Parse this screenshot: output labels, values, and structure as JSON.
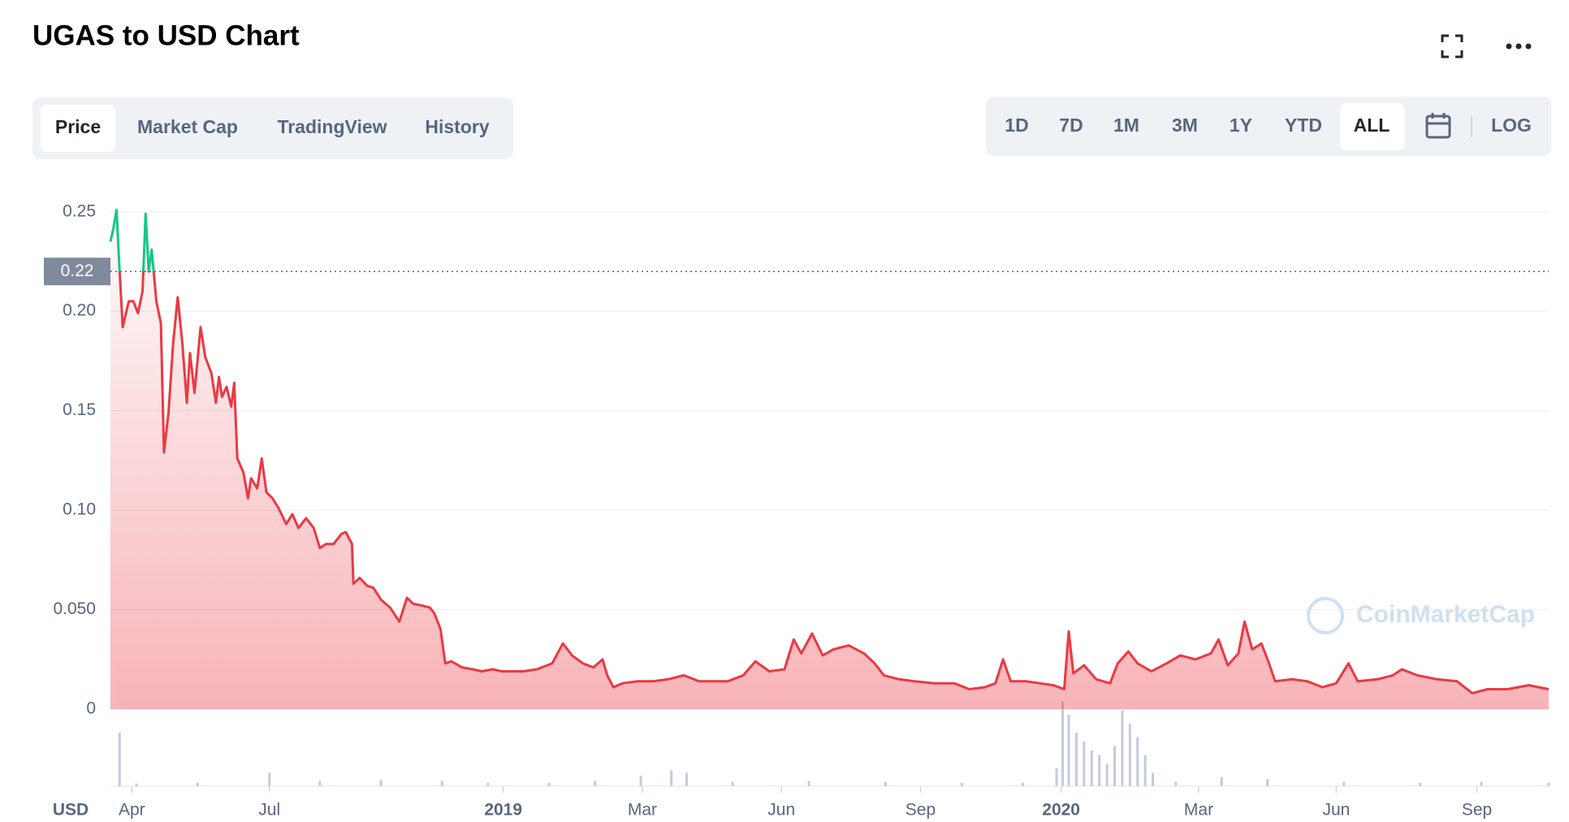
{
  "header": {
    "title": "UGAS to USD Chart"
  },
  "tabs": [
    {
      "label": "Price",
      "active": true
    },
    {
      "label": "Market Cap",
      "active": false
    },
    {
      "label": "TradingView",
      "active": false
    },
    {
      "label": "History",
      "active": false
    }
  ],
  "ranges": [
    {
      "label": "1D",
      "active": false
    },
    {
      "label": "7D",
      "active": false
    },
    {
      "label": "1M",
      "active": false
    },
    {
      "label": "3M",
      "active": false
    },
    {
      "label": "1Y",
      "active": false
    },
    {
      "label": "YTD",
      "active": false
    },
    {
      "label": "ALL",
      "active": true
    }
  ],
  "scale_button": "LOG",
  "chart_data": {
    "type": "line",
    "currency_label": "USD",
    "watermark": "CoinMarketCap",
    "up_color": "#16c784",
    "down_color": "#ea3943",
    "reference_line": {
      "value": 0.22,
      "label": "0.22"
    },
    "grid": true,
    "ylim": [
      0,
      0.265
    ],
    "yticks": [
      0,
      {
        "value": 0.05,
        "label": "0.050"
      },
      {
        "value": 0.1,
        "label": "0.10"
      },
      0.15,
      {
        "value": 0.2,
        "label": "0.20"
      },
      0.25
    ],
    "xlim": [
      -257,
      684
    ],
    "xticks": [
      {
        "value": -243,
        "label": "Apr"
      },
      {
        "value": -153,
        "label": "Jul"
      },
      {
        "value": 0,
        "label": "2019"
      },
      {
        "value": 91,
        "label": "Mar"
      },
      {
        "value": 182,
        "label": "Jun"
      },
      {
        "value": 273,
        "label": "Sep"
      },
      {
        "value": 365,
        "label": "2020"
      },
      {
        "value": 455,
        "label": "Mar"
      },
      {
        "value": 545,
        "label": "Jun"
      },
      {
        "value": 637,
        "label": "Sep"
      }
    ],
    "x": [
      -257,
      -255,
      -253,
      -251,
      -249,
      -245,
      -242,
      -239,
      -236,
      -234,
      -232,
      -230,
      -227,
      -224,
      -222,
      -219,
      -216,
      -213,
      -210,
      -207,
      -205,
      -202,
      -198,
      -195,
      -191,
      -188,
      -186,
      -184,
      -181,
      -178,
      -176,
      -174,
      -170,
      -167,
      -165,
      -161,
      -158,
      -155,
      -151,
      -147,
      -142,
      -138,
      -134,
      -129,
      -124,
      -120,
      -116,
      -111,
      -106,
      -103,
      -99,
      -98,
      -94,
      -89,
      -85,
      -80,
      -74,
      -68,
      -63,
      -59,
      -53,
      -48,
      -45,
      -41,
      -38,
      -34,
      -27,
      -20,
      -14,
      -7,
      -1,
      6,
      13,
      22,
      32,
      39,
      45,
      52,
      59,
      65,
      68,
      72,
      78,
      88,
      98,
      108,
      118,
      128,
      138,
      147,
      157,
      165,
      174,
      184,
      190,
      195,
      202,
      209,
      216,
      226,
      236,
      243,
      249,
      259,
      269,
      282,
      295,
      305,
      315,
      322,
      327,
      332,
      342,
      351,
      360,
      367,
      370,
      373,
      380,
      388,
      397,
      402,
      409,
      415,
      424,
      434,
      443,
      453,
      463,
      468,
      474,
      481,
      485,
      490,
      496,
      501,
      505,
      516,
      526,
      536,
      545,
      553,
      559,
      572,
      582,
      588,
      598,
      611,
      624,
      634,
      644,
      657,
      671,
      684
    ],
    "values": [
      0.235,
      0.242,
      0.251,
      0.22,
      0.192,
      0.205,
      0.205,
      0.199,
      0.21,
      0.249,
      0.22,
      0.231,
      0.205,
      0.194,
      0.129,
      0.149,
      0.184,
      0.207,
      0.184,
      0.154,
      0.179,
      0.159,
      0.192,
      0.177,
      0.169,
      0.154,
      0.167,
      0.157,
      0.162,
      0.152,
      0.164,
      0.126,
      0.119,
      0.106,
      0.116,
      0.111,
      0.126,
      0.109,
      0.106,
      0.101,
      0.093,
      0.098,
      0.091,
      0.096,
      0.091,
      0.081,
      0.083,
      0.083,
      0.088,
      0.089,
      0.083,
      0.063,
      0.066,
      0.062,
      0.061,
      0.055,
      0.051,
      0.044,
      0.056,
      0.053,
      0.052,
      0.051,
      0.048,
      0.04,
      0.023,
      0.024,
      0.021,
      0.02,
      0.019,
      0.02,
      0.019,
      0.019,
      0.019,
      0.02,
      0.023,
      0.033,
      0.027,
      0.023,
      0.021,
      0.025,
      0.017,
      0.011,
      0.013,
      0.014,
      0.014,
      0.015,
      0.017,
      0.014,
      0.014,
      0.014,
      0.017,
      0.024,
      0.019,
      0.02,
      0.035,
      0.028,
      0.038,
      0.027,
      0.03,
      0.032,
      0.028,
      0.023,
      0.017,
      0.015,
      0.014,
      0.013,
      0.013,
      0.01,
      0.011,
      0.013,
      0.025,
      0.014,
      0.014,
      0.013,
      0.012,
      0.01,
      0.039,
      0.018,
      0.022,
      0.015,
      0.013,
      0.023,
      0.029,
      0.023,
      0.019,
      0.023,
      0.027,
      0.025,
      0.028,
      0.035,
      0.022,
      0.028,
      0.044,
      0.03,
      0.033,
      0.023,
      0.014,
      0.015,
      0.014,
      0.011,
      0.013,
      0.023,
      0.014,
      0.015,
      0.017,
      0.02,
      0.017,
      0.015,
      0.014,
      0.008,
      0.01,
      0.01,
      0.012,
      0.01
    ],
    "volume": {
      "color": "#c3c9e0",
      "vlim": [
        0,
        100
      ],
      "x": [
        -251,
        -240,
        -200,
        -153,
        -120,
        -80,
        -40,
        -10,
        30,
        60,
        90,
        110,
        120,
        150,
        200,
        250,
        300,
        340,
        362,
        366,
        370,
        375,
        380,
        385,
        390,
        395,
        400,
        405,
        410,
        415,
        420,
        425,
        440,
        470,
        500,
        550,
        600,
        640,
        684
      ],
      "values": [
        60,
        3,
        4,
        15,
        6,
        7,
        6,
        4,
        4,
        6,
        12,
        18,
        15,
        5,
        6,
        5,
        4,
        4,
        20,
        95,
        80,
        60,
        50,
        40,
        35,
        25,
        45,
        85,
        70,
        55,
        35,
        15,
        5,
        10,
        8,
        5,
        4,
        5,
        4
      ]
    }
  }
}
